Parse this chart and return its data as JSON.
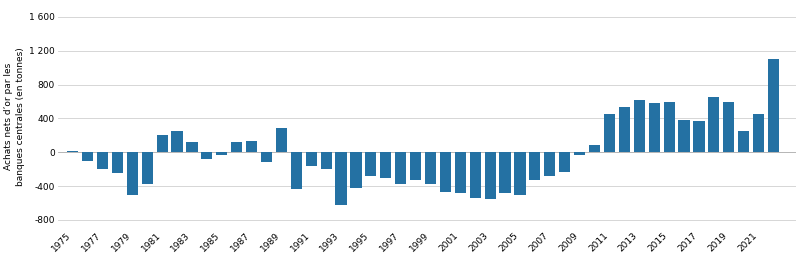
{
  "years": [
    1975,
    1976,
    1977,
    1978,
    1979,
    1980,
    1981,
    1982,
    1983,
    1984,
    1985,
    1986,
    1987,
    1988,
    1989,
    1990,
    1991,
    1992,
    1993,
    1994,
    1995,
    1996,
    1997,
    1998,
    1999,
    2000,
    2001,
    2002,
    2003,
    2004,
    2005,
    2006,
    2007,
    2008,
    2009,
    2010,
    2011,
    2012,
    2013,
    2014,
    2015,
    2016,
    2017,
    2018,
    2019,
    2020,
    2021,
    2022
  ],
  "values": [
    10,
    -100,
    -200,
    -250,
    -500,
    -380,
    200,
    250,
    120,
    -80,
    -30,
    120,
    130,
    -120,
    290,
    -430,
    -160,
    -200,
    -620,
    -420,
    -280,
    -300,
    -380,
    -330,
    -380,
    -470,
    -480,
    -540,
    -550,
    -480,
    -500,
    -330,
    -280,
    -230,
    -30,
    80,
    450,
    540,
    620,
    580,
    590,
    380,
    370,
    650,
    590,
    250,
    450,
    1100
  ],
  "bar_color": "#2471a3",
  "ylabel": "Achats nets d’or par les\nbanques centrales (en tonnes)",
  "yticks": [
    -800,
    -400,
    0,
    400,
    800,
    1200,
    1600
  ],
  "ytick_labels": [
    "-800",
    "-400",
    "0",
    "400",
    "800",
    "1 200",
    "1 600"
  ],
  "xtick_years": [
    1975,
    1977,
    1979,
    1981,
    1983,
    1985,
    1987,
    1989,
    1991,
    1993,
    1995,
    1997,
    1999,
    2001,
    2003,
    2005,
    2007,
    2009,
    2011,
    2013,
    2015,
    2017,
    2019,
    2021
  ],
  "ylim": [
    -900,
    1750
  ],
  "xlim": [
    1974.0,
    2023.5
  ],
  "background_color": "#ffffff",
  "grid_color": "#d0d0d0",
  "bar_width": 0.75,
  "fontsize": 6.5,
  "ylabel_fontsize": 6.5
}
